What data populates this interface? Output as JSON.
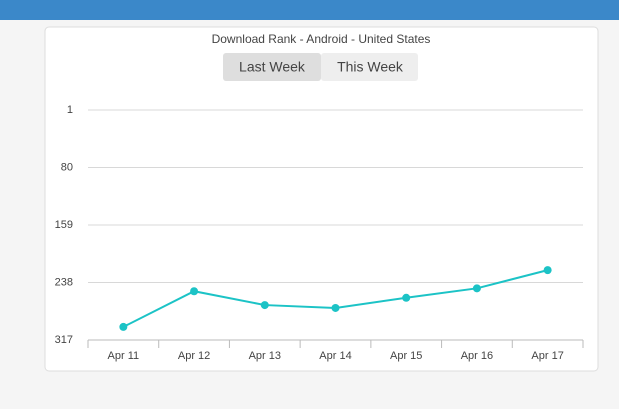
{
  "chart_data": {
    "type": "line",
    "title": "Download Rank - Android - United States",
    "toggle": [
      "Last Week",
      "This Week"
    ],
    "categories": [
      "Apr 11",
      "Apr 12",
      "Apr 13",
      "Apr 14",
      "Apr 15",
      "Apr 16",
      "Apr 17"
    ],
    "series": [
      {
        "color": "#1cc3c6",
        "values": [
          299,
          250,
          269,
          273,
          259,
          246,
          221
        ]
      }
    ],
    "ylim": [
      317,
      1
    ],
    "yticks": [
      1,
      80,
      159,
      238,
      317
    ],
    "grid": true
  }
}
